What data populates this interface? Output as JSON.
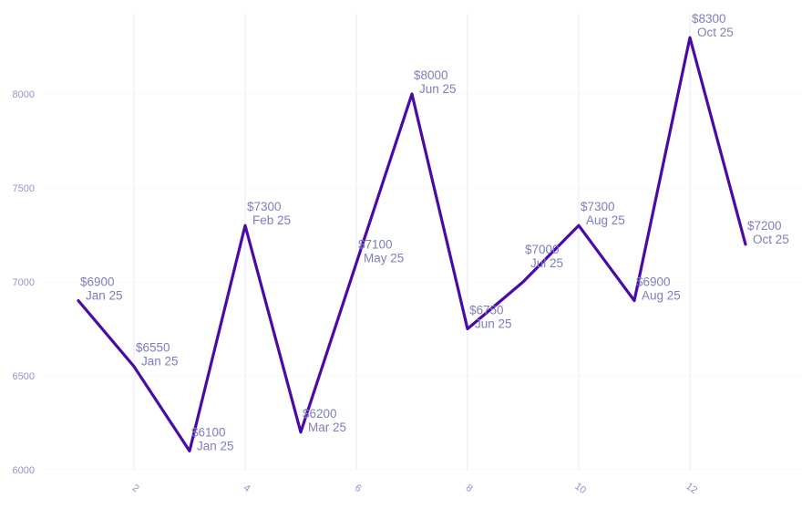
{
  "chart_data": {
    "type": "line",
    "title": "",
    "xlabel": "",
    "ylabel": "",
    "x": [
      1,
      2,
      3,
      4,
      5,
      6,
      7,
      8,
      9,
      10,
      11,
      12,
      13
    ],
    "values": [
      6900,
      6550,
      6100,
      7300,
      6200,
      7100,
      8000,
      6750,
      7000,
      7300,
      6900,
      8300,
      7200
    ],
    "point_labels": [
      {
        "value": "$6900",
        "date": "Jan 25"
      },
      {
        "value": "$6550",
        "date": "Jan 25"
      },
      {
        "value": "$6100",
        "date": "Jan 25"
      },
      {
        "value": "$7300",
        "date": "Feb 25"
      },
      {
        "value": "$6200",
        "date": "Mar 25"
      },
      {
        "value": "$7100",
        "date": "May 25"
      },
      {
        "value": "$8000",
        "date": "Jun 25"
      },
      {
        "value": "$6750",
        "date": "Jun 25"
      },
      {
        "value": "$7000",
        "date": "Jul 25"
      },
      {
        "value": "$7300",
        "date": "Aug 25"
      },
      {
        "value": "$6900",
        "date": "Aug 25"
      },
      {
        "value": "$8300",
        "date": "Oct 25"
      },
      {
        "value": "$7200",
        "date": "Oct 25"
      }
    ],
    "x_ticks": [
      2,
      4,
      6,
      8,
      10,
      12
    ],
    "y_ticks": [
      6000,
      6500,
      7000,
      7500,
      8000
    ],
    "xlim": [
      0.6,
      14
    ],
    "ylim": [
      5800,
      8500
    ],
    "grid": true,
    "legend": "none",
    "colors": {
      "line": "#4a0aa6",
      "data_label": "#7d7ebb",
      "tick_label": "#9395ca",
      "grid_vertical": "#ededf7",
      "grid_horizontal": "#e3e3f0"
    }
  }
}
